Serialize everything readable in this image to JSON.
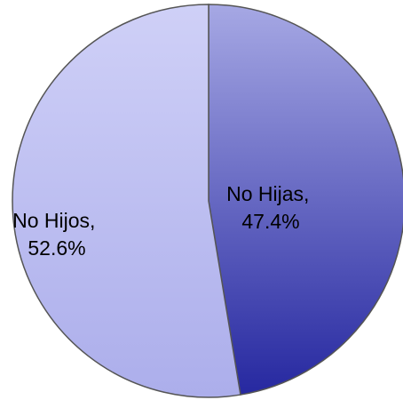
{
  "chart_data": {
    "type": "pie",
    "slices": [
      {
        "name": "No Hijas",
        "value": 47.4,
        "label_line1": "No Hijas,",
        "label_line2": "47.4%",
        "color_light": "#a6a8e4",
        "color_dark": "#2628a0"
      },
      {
        "name": "No Hijos",
        "value": 52.6,
        "label_line1": "No Hijos,",
        "label_line2": "52.6%",
        "color_light": "#cfd0f7",
        "color_dark": "#acaeeb"
      }
    ],
    "start_angle_deg": 0,
    "direction": "clockwise",
    "slice_border_color": "#555555"
  }
}
